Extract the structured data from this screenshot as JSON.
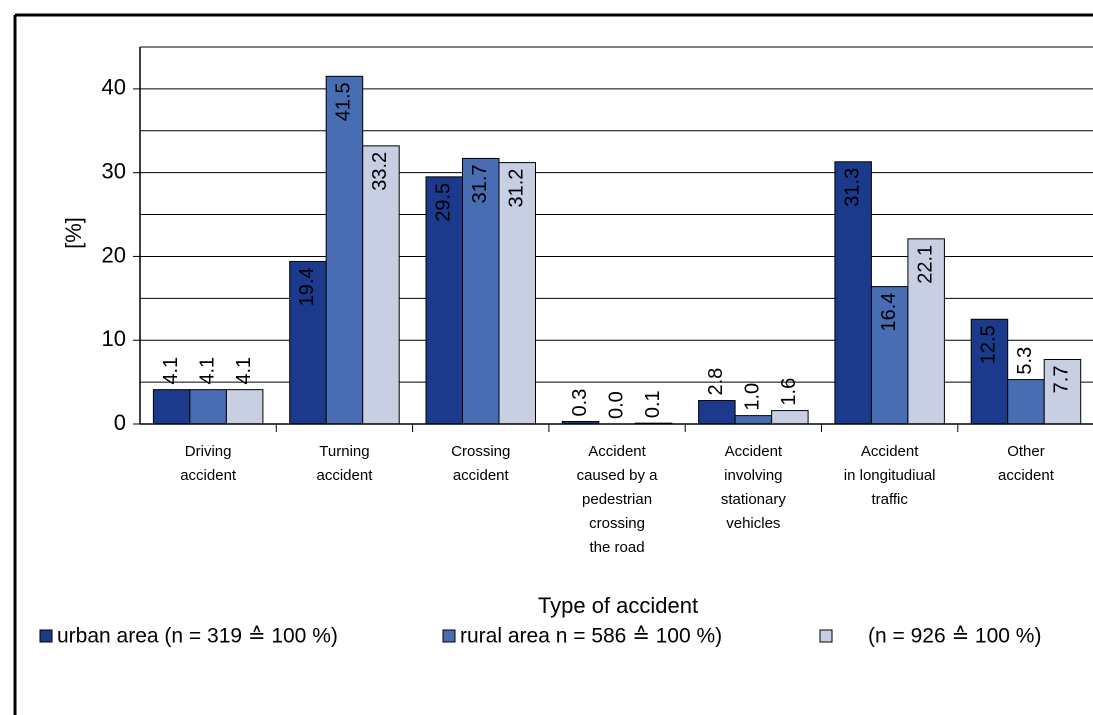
{
  "chart_data": {
    "type": "bar",
    "y_label": "[%]",
    "x_label": "Type of accident",
    "categories": [
      [
        "Driving",
        "accident"
      ],
      [
        "Turning",
        "accident"
      ],
      [
        "Crossing",
        "accident"
      ],
      [
        "Accident",
        "caused by a",
        "pedestrian",
        "crossing",
        "the road"
      ],
      [
        "Accident",
        "involving",
        "stationary",
        "vehicles"
      ],
      [
        "Accident",
        "in longitudiual",
        "traffic"
      ],
      [
        "Other",
        "accident"
      ]
    ],
    "series": [
      {
        "name": "urban area (n = 319 ≙ 100 %)",
        "color": "#1c3a8c",
        "label_color": "#1c3a8c",
        "values": [
          4.1,
          19.4,
          29.5,
          0.3,
          2.8,
          31.3,
          12.5
        ],
        "value_labels": [
          "4.1",
          "19.4",
          "29.5",
          "0.3",
          "2.8",
          "31.3",
          "12.5"
        ]
      },
      {
        "name": "rural area n = 586 ≙ 100 %)",
        "color": "#486db3",
        "label_color": "#5578bb",
        "values": [
          4.1,
          41.5,
          31.7,
          0.0,
          1.0,
          16.4,
          5.3
        ],
        "value_labels": [
          "4.1",
          "41.5",
          "31.7",
          "0.0",
          "1.0",
          "16.4",
          "5.3"
        ]
      },
      {
        "name": "(n = 926 ≙ 100 %)",
        "color": "#c8cfe3",
        "label_color": "#000000",
        "values": [
          4.1,
          33.2,
          31.2,
          0.1,
          1.6,
          22.1,
          7.7
        ],
        "value_labels": [
          "4.1",
          "33.2",
          "31.2",
          "0.1",
          "1.6",
          "22.1",
          "7.7"
        ]
      }
    ],
    "ylim": [
      0,
      45
    ],
    "yticks": [
      0,
      10,
      20,
      30,
      40
    ],
    "grid_yticks": [
      0,
      5,
      10,
      15,
      20,
      25,
      30,
      35,
      40,
      45
    ],
    "grid": true,
    "legend": "bottom"
  }
}
